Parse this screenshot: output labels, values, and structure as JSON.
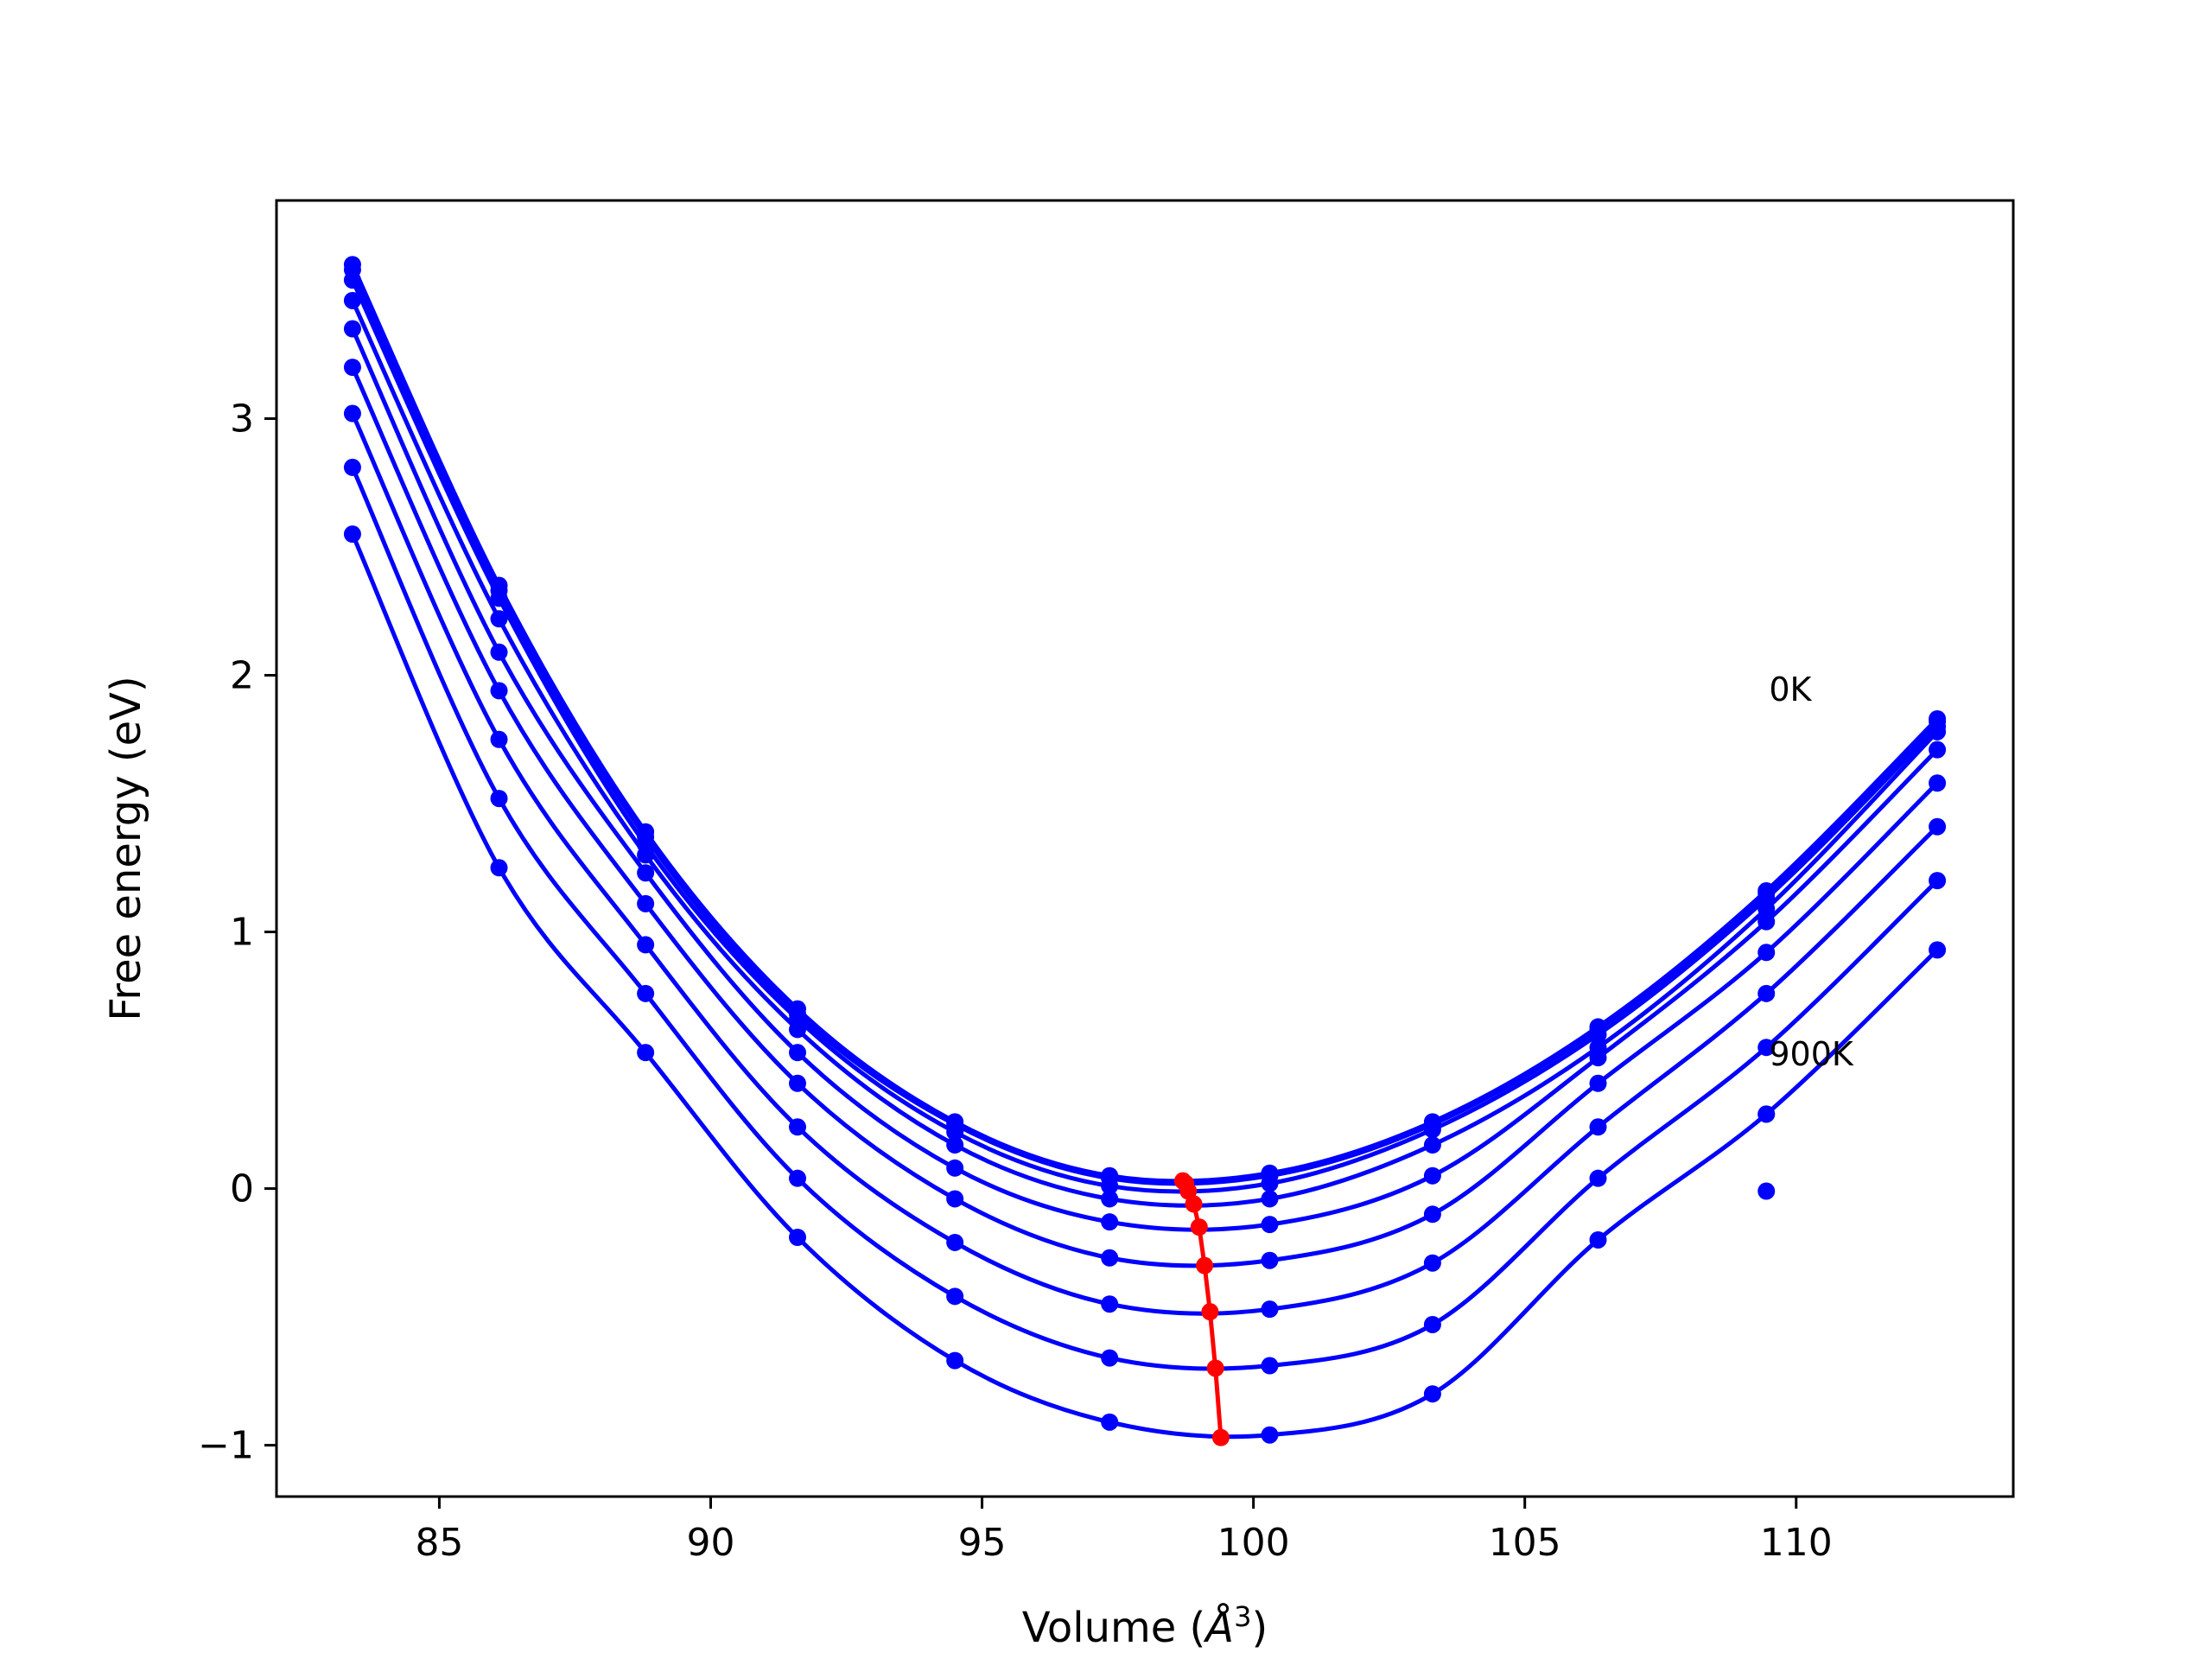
{
  "chart_data": {
    "type": "line",
    "title": "",
    "xlabel": "Volume (",
    "xlabel_symbol": "Å",
    "xlabel_exp": "3",
    "xlabel_end": ")",
    "ylabel": "Free energy (eV)",
    "xlim": [
      82,
      114
    ],
    "ylim": [
      -1.2,
      3.85
    ],
    "xticks": [
      85,
      90,
      95,
      100,
      105,
      110
    ],
    "yticks": [
      -1,
      0,
      1,
      2,
      3
    ],
    "ytick_labels": [
      "−1",
      "0",
      "1",
      "2",
      "3"
    ],
    "grid": false,
    "colors": {
      "curves": "#0000ff",
      "minimum": "#ff0000",
      "axes": "#000000"
    },
    "annotations": [
      {
        "text": "0K",
        "x": 109.5,
        "y": 1.9
      },
      {
        "text": "900K",
        "x": 109.5,
        "y": 0.48
      }
    ],
    "x": [
      83.4,
      86.1,
      88.8,
      91.6,
      94.5,
      97.35,
      100.3,
      103.3,
      106.35,
      109.45,
      112.6
    ],
    "series": [
      {
        "values": [
          3.6,
          2.35,
          1.39,
          0.7,
          0.26,
          0.05,
          0.06,
          0.26,
          0.63,
          1.16,
          1.83
        ]
      },
      {
        "values": [
          3.58,
          2.33,
          1.37,
          0.68,
          0.25,
          0.04,
          0.05,
          0.25,
          0.62,
          1.15,
          1.82
        ]
      },
      {
        "values": [
          3.54,
          2.3,
          1.34,
          0.66,
          0.22,
          0.01,
          0.02,
          0.23,
          0.6,
          1.13,
          1.8
        ]
      },
      {
        "values": [
          3.46,
          2.22,
          1.3,
          0.62,
          0.17,
          -0.04,
          -0.04,
          0.17,
          0.55,
          1.09,
          1.78
        ]
      },
      {
        "values": [
          3.35,
          2.09,
          1.23,
          0.53,
          0.08,
          -0.13,
          -0.14,
          0.05,
          0.51,
          1.04,
          1.71
        ]
      },
      {
        "values": [
          3.2,
          1.94,
          1.11,
          0.41,
          -0.04,
          -0.27,
          -0.28,
          -0.1,
          0.41,
          0.92,
          1.58
        ]
      },
      {
        "values": [
          3.02,
          1.75,
          0.95,
          0.24,
          -0.21,
          -0.45,
          -0.47,
          -0.29,
          0.24,
          0.76,
          1.41
        ]
      },
      {
        "values": [
          2.81,
          1.52,
          0.76,
          0.04,
          -0.42,
          -0.66,
          -0.69,
          -0.53,
          0.04,
          0.55,
          1.2
        ]
      },
      {
        "values": [
          2.55,
          1.25,
          0.53,
          -0.19,
          -0.67,
          -0.91,
          -0.96,
          -0.8,
          -0.2,
          0.29,
          0.93
        ]
      }
    ],
    "series_extra_points": [
      {
        "x": [],
        "values": []
      },
      {
        "x": [],
        "values": []
      },
      {
        "x": [],
        "values": []
      },
      {
        "x": [],
        "values": []
      },
      {
        "x": [],
        "values": []
      },
      {
        "x": [],
        "values": []
      },
      {
        "x": [],
        "values": []
      },
      {
        "x": [
          109.45
        ],
        "values": [
          0.29
        ]
      },
      {
        "x": [
          109.45
        ],
        "values": [
          -0.01
        ]
      }
    ],
    "minimum_curve": {
      "x": [
        98.7,
        98.75,
        98.8,
        98.9,
        99.0,
        99.1,
        99.2,
        99.3,
        99.4
      ],
      "values": [
        0.03,
        0.02,
        -0.01,
        -0.06,
        -0.15,
        -0.3,
        -0.48,
        -0.7,
        -0.97
      ]
    }
  }
}
